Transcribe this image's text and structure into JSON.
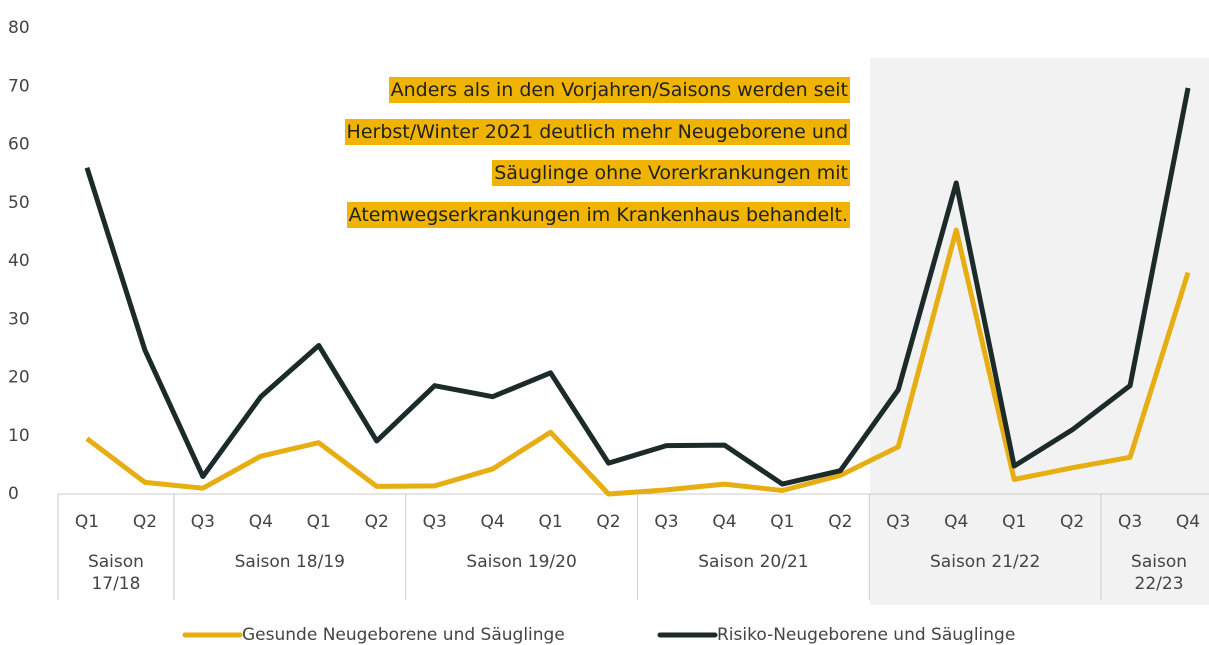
{
  "chart_data": {
    "type": "line",
    "annotation": [
      "Anders als in den Vorjahren/Saisons werden seit",
      "Herbst/Winter 2021 deutlich mehr Neugeborene und",
      "Säuglinge ohne Vorerkrankungen mit",
      "Atemwegserkrankungen im Krankenhaus behandelt."
    ],
    "groups": [
      {
        "label": "Saison 17/18",
        "categories": [
          "Q1",
          "Q2"
        ]
      },
      {
        "label": "Saison 18/19",
        "categories": [
          "Q3",
          "Q4",
          "Q1",
          "Q2"
        ]
      },
      {
        "label": "Saison 19/20",
        "categories": [
          "Q3",
          "Q4",
          "Q1",
          "Q2"
        ]
      },
      {
        "label": "Saison 20/21",
        "categories": [
          "Q3",
          "Q4",
          "Q1",
          "Q2"
        ]
      },
      {
        "label": "Saison 21/22",
        "categories": [
          "Q3",
          "Q4",
          "Q1",
          "Q2"
        ]
      },
      {
        "label": "Saison 22/23",
        "categories": [
          "Q3",
          "Q4"
        ]
      }
    ],
    "series": [
      {
        "name": "Gesunde Neugeborene und Säuglinge",
        "color": "#e6ae12",
        "values": [
          9.5,
          2,
          1,
          6.5,
          8.8,
          1.3,
          1.4,
          4.3,
          10.6,
          0,
          0.7,
          1.7,
          0.6,
          3.2,
          8.1,
          45.3,
          2.5,
          4.5,
          6.3,
          38
        ]
      },
      {
        "name": "Risiko-Neugeborene und Säuglinge",
        "color": "#1c2a29",
        "values": [
          56,
          24.7,
          3,
          16.7,
          25.5,
          9.1,
          18.6,
          16.7,
          20.8,
          5.3,
          8.3,
          8.4,
          1.7,
          4,
          17.9,
          53.4,
          4.8,
          11,
          18.6,
          69.7
        ]
      }
    ],
    "ylim": [
      0,
      80
    ],
    "yticks": [
      0,
      10,
      20,
      30,
      40,
      50,
      60,
      70,
      80
    ],
    "grid": false
  }
}
